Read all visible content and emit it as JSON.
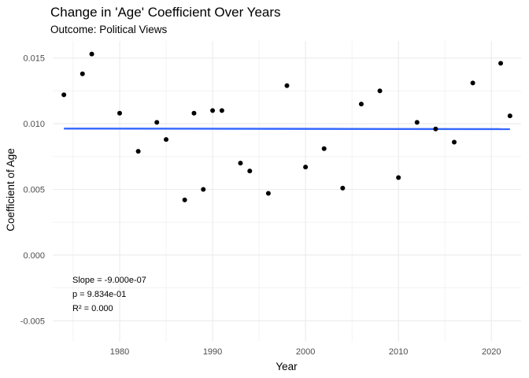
{
  "chart_data": {
    "type": "scatter",
    "title": "Change in 'Age' Coefficient Over Years",
    "subtitle": "Outcome: Political Views",
    "xlabel": "Year",
    "ylabel": "Coefficient of Age",
    "xlim": [
      1972.8,
      2023.2
    ],
    "ylim": [
      -0.0066,
      0.0163
    ],
    "x_ticks": [
      1980,
      1990,
      2000,
      2010,
      2020
    ],
    "x_tick_labels": [
      "1980",
      "1990",
      "2000",
      "2010",
      "2020"
    ],
    "y_ticks": [
      -0.005,
      0.0,
      0.005,
      0.01,
      0.015
    ],
    "y_tick_labels": [
      "-0.005",
      "0.000",
      "0.005",
      "0.010",
      "0.015"
    ],
    "grid": true,
    "points": {
      "x": [
        1974,
        1976,
        1977,
        1980,
        1982,
        1984,
        1985,
        1987,
        1988,
        1989,
        1990,
        1991,
        1993,
        1994,
        1996,
        1998,
        2000,
        2002,
        2004,
        2006,
        2008,
        2010,
        2012,
        2014,
        2016,
        2018,
        2021,
        2022
      ],
      "y": [
        0.0122,
        0.0138,
        0.0153,
        0.0108,
        0.0079,
        0.0101,
        0.0088,
        0.0042,
        0.0108,
        0.005,
        0.011,
        0.011,
        0.007,
        0.0064,
        0.0047,
        0.0129,
        0.0067,
        0.0081,
        0.0051,
        0.0115,
        0.0125,
        0.0059,
        0.0101,
        0.0096,
        0.0086,
        0.0131,
        0.0146,
        0.0106
      ]
    },
    "trend_line": {
      "x": [
        1974,
        2022
      ],
      "y": [
        0.00963,
        0.00959
      ],
      "color": "#3366ff"
    },
    "annotations": [
      "Slope = -9.000e-07",
      "p = 9.834e-01",
      "R² = 0.000"
    ],
    "point_color": "#000000",
    "grid_color": "#ebebeb"
  }
}
